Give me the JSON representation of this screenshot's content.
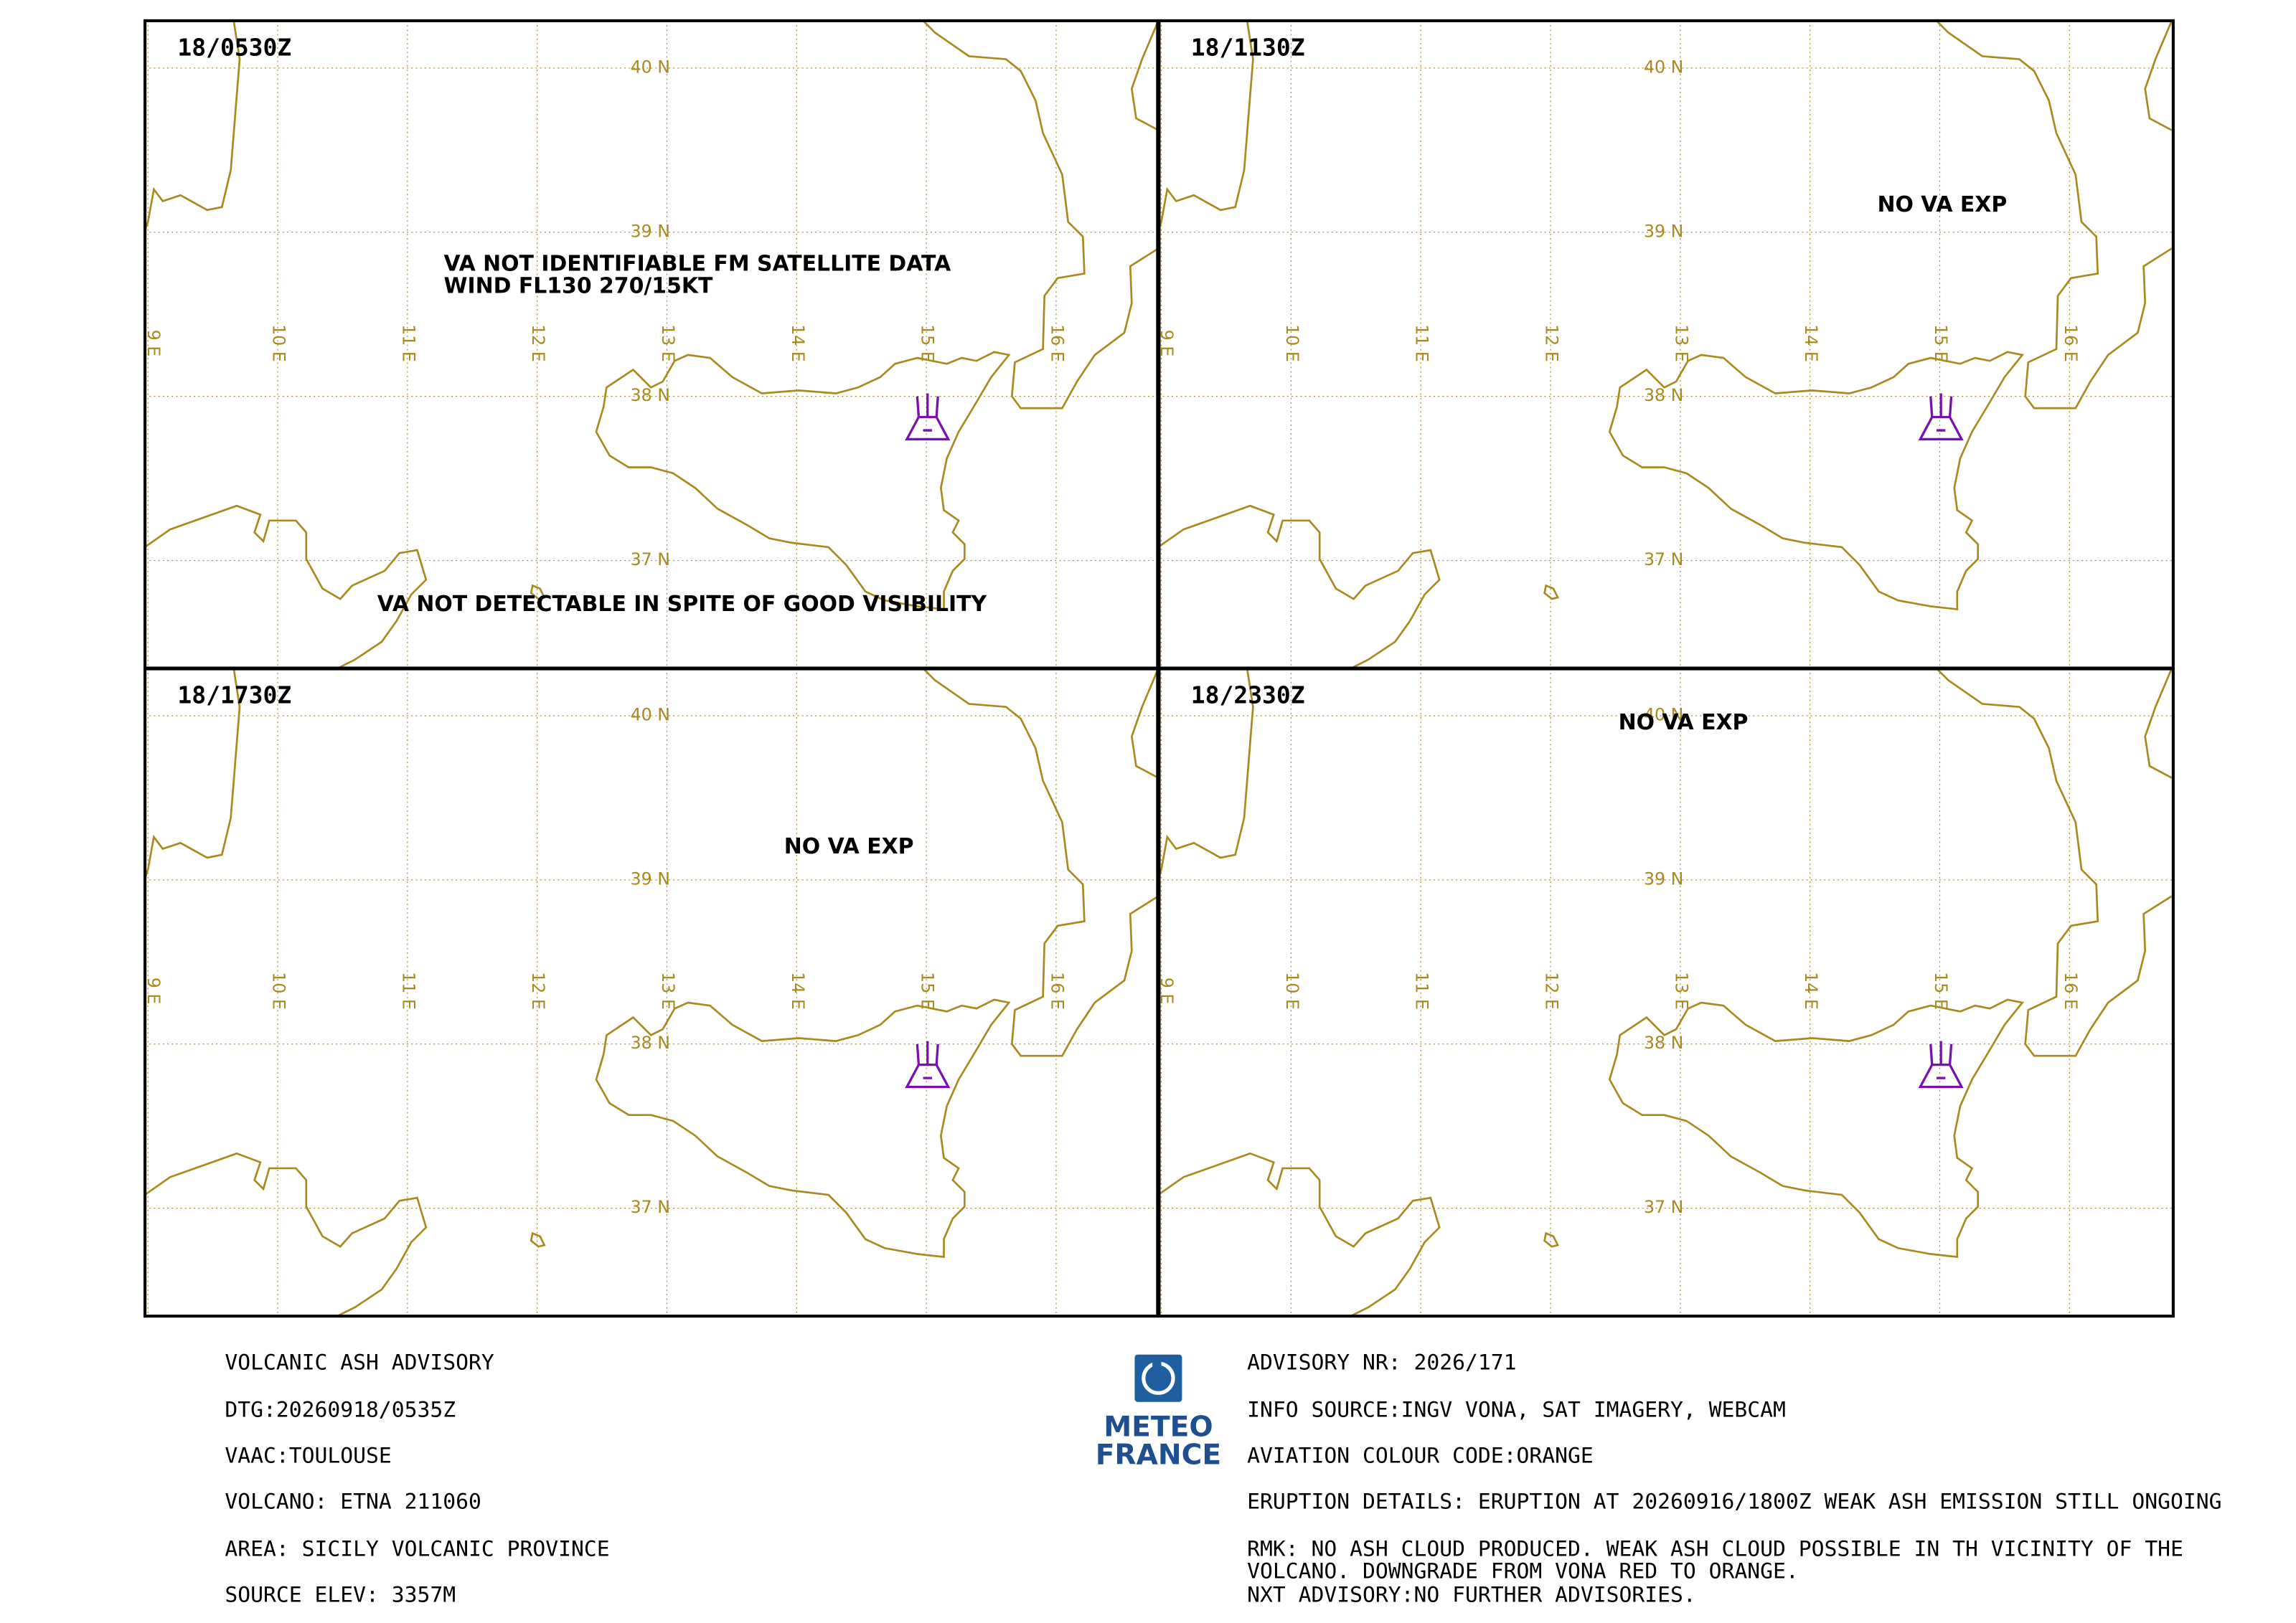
{
  "panels": [
    {
      "time": "18/0530Z",
      "annotations": [
        "VA NOT IDENTIFIABLE FM SATELLITE DATA",
        "WIND FL130 270/15KT",
        "VA NOT DETECTABLE IN SPITE OF GOOD VISIBILITY"
      ]
    },
    {
      "time": "18/1130Z",
      "annotations": [
        "NO VA EXP"
      ]
    },
    {
      "time": "18/1730Z",
      "annotations": [
        "NO VA EXP"
      ]
    },
    {
      "time": "18/2330Z",
      "annotations": [
        "NO VA EXP"
      ]
    }
  ],
  "grid_labels": {
    "latitudes": [
      "40 N",
      "39 N",
      "38 N",
      "37 N"
    ],
    "longitudes": [
      "9 E",
      "10 E",
      "11 E",
      "12 E",
      "13 E",
      "14 E",
      "15 E",
      "16 E"
    ]
  },
  "logo": [
    "METEO",
    "FRANCE"
  ],
  "advisory": {
    "left": [
      "VOLCANIC ASH ADVISORY",
      "DTG:20260918/0535Z",
      "VAAC:TOULOUSE",
      "VOLCANO: ETNA 211060",
      "AREA: SICILY VOLCANIC PROVINCE",
      "SOURCE ELEV: 3357M"
    ],
    "right": [
      "ADVISORY NR: 2026/171",
      "INFO SOURCE:INGV VONA, SAT IMAGERY, WEBCAM",
      "AVIATION COLOUR CODE:ORANGE",
      "ERUPTION DETAILS: ERUPTION AT 20260916/1800Z WEAK ASH EMISSION STILL ONGOING",
      "RMK: NO ASH CLOUD PRODUCED. WEAK ASH CLOUD POSSIBLE IN TH VICINITY OF THE",
      "VOLCANO. DOWNGRADE FROM VONA RED TO ORANGE.",
      "NXT ADVISORY:NO FURTHER ADVISORIES."
    ]
  }
}
